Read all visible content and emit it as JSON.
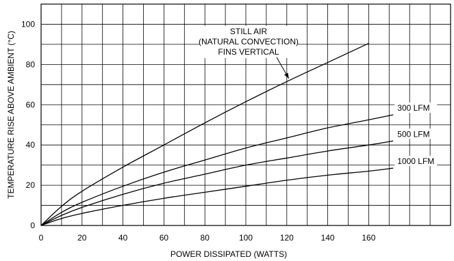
{
  "chart_data": {
    "type": "line",
    "xlabel": "POWER DISSIPATED (WATTS)",
    "ylabel": "TEMPERATURE RISE ABOVE AMBIENT (°C)",
    "xlim": [
      0,
      200
    ],
    "ylim": [
      0,
      110
    ],
    "x_ticks": [
      0,
      20,
      40,
      60,
      80,
      100,
      120,
      140,
      160
    ],
    "y_ticks": [
      0,
      20,
      40,
      60,
      80,
      100
    ],
    "x_tick_labels": [
      "0",
      "20",
      "40",
      "60",
      "80",
      "100",
      "120",
      "140",
      "160"
    ],
    "y_tick_labels": [
      "0",
      "20",
      "40",
      "60",
      "80",
      "100"
    ],
    "grid": true,
    "grid_minor_x": 10,
    "grid_minor_y": 10,
    "series": [
      {
        "name": "",
        "color": "#000000",
        "x": [
          0,
          10,
          20,
          40,
          60,
          80,
          100,
          120,
          140,
          160
        ],
        "y": [
          0,
          9.5,
          17,
          29,
          40,
          51,
          61.5,
          71.5,
          81,
          90.5
        ]
      },
      {
        "name": "300 LFM",
        "color": "#000000",
        "x": [
          0,
          10,
          20,
          40,
          60,
          80,
          100,
          120,
          140,
          160,
          172
        ],
        "y": [
          0,
          6.5,
          11.5,
          19.5,
          26.5,
          32.5,
          38.5,
          43.5,
          48.5,
          52.5,
          55
        ]
      },
      {
        "name": "500 LFM",
        "color": "#000000",
        "x": [
          0,
          10,
          20,
          40,
          60,
          80,
          100,
          120,
          140,
          160,
          172
        ],
        "y": [
          0,
          5,
          9,
          15.5,
          21,
          25.5,
          30,
          33.5,
          37,
          40,
          42
        ]
      },
      {
        "name": "1000 LFM",
        "color": "#000000",
        "x": [
          0,
          10,
          20,
          40,
          60,
          80,
          100,
          120,
          140,
          160,
          172
        ],
        "y": [
          0,
          3.5,
          6,
          10,
          13.5,
          16.5,
          19.5,
          22.5,
          25,
          27,
          28.5
        ]
      }
    ],
    "annotation": {
      "lines": [
        "STILL AIR",
        "(NATURAL CONVECTION)",
        "FINS VERTICAL"
      ],
      "arrow_to": [
        121,
        73
      ]
    }
  }
}
